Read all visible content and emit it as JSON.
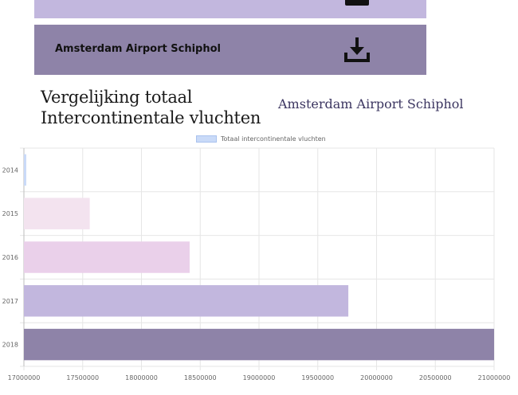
{
  "download_bars": {
    "top": {
      "color": "#c2b7de",
      "icon": "download-icon"
    },
    "main": {
      "label": "Amsterdam Airport Schiphol",
      "color": "#8e83a8",
      "icon": "download-icon"
    }
  },
  "chart_data": {
    "type": "bar",
    "orientation": "horizontal",
    "title": "Vergelijking totaal Intercontinentale vluchten",
    "title_lines": [
      "Vergelijking totaal",
      "Intercontinentale vluchten"
    ],
    "subtitle": "Amsterdam Airport Schiphol",
    "categories": [
      "2014",
      "2015",
      "2016",
      "2017",
      "2018"
    ],
    "series": [
      {
        "name": "Totaal intercontinentale vluchten",
        "values": [
          17020000,
          17560000,
          18410000,
          19760000,
          21000000
        ],
        "colors": [
          "#c9daf8",
          "#f3e3ef",
          "#ead0ea",
          "#c2b7de",
          "#8e83a8"
        ]
      }
    ],
    "xlim": [
      17000000,
      21000000
    ],
    "x_ticks": [
      "17000000",
      "17500000",
      "18000000",
      "18500000",
      "19000000",
      "19500000",
      "20000000",
      "20500000",
      "21000000"
    ],
    "grid": true,
    "legend": "top-center"
  }
}
